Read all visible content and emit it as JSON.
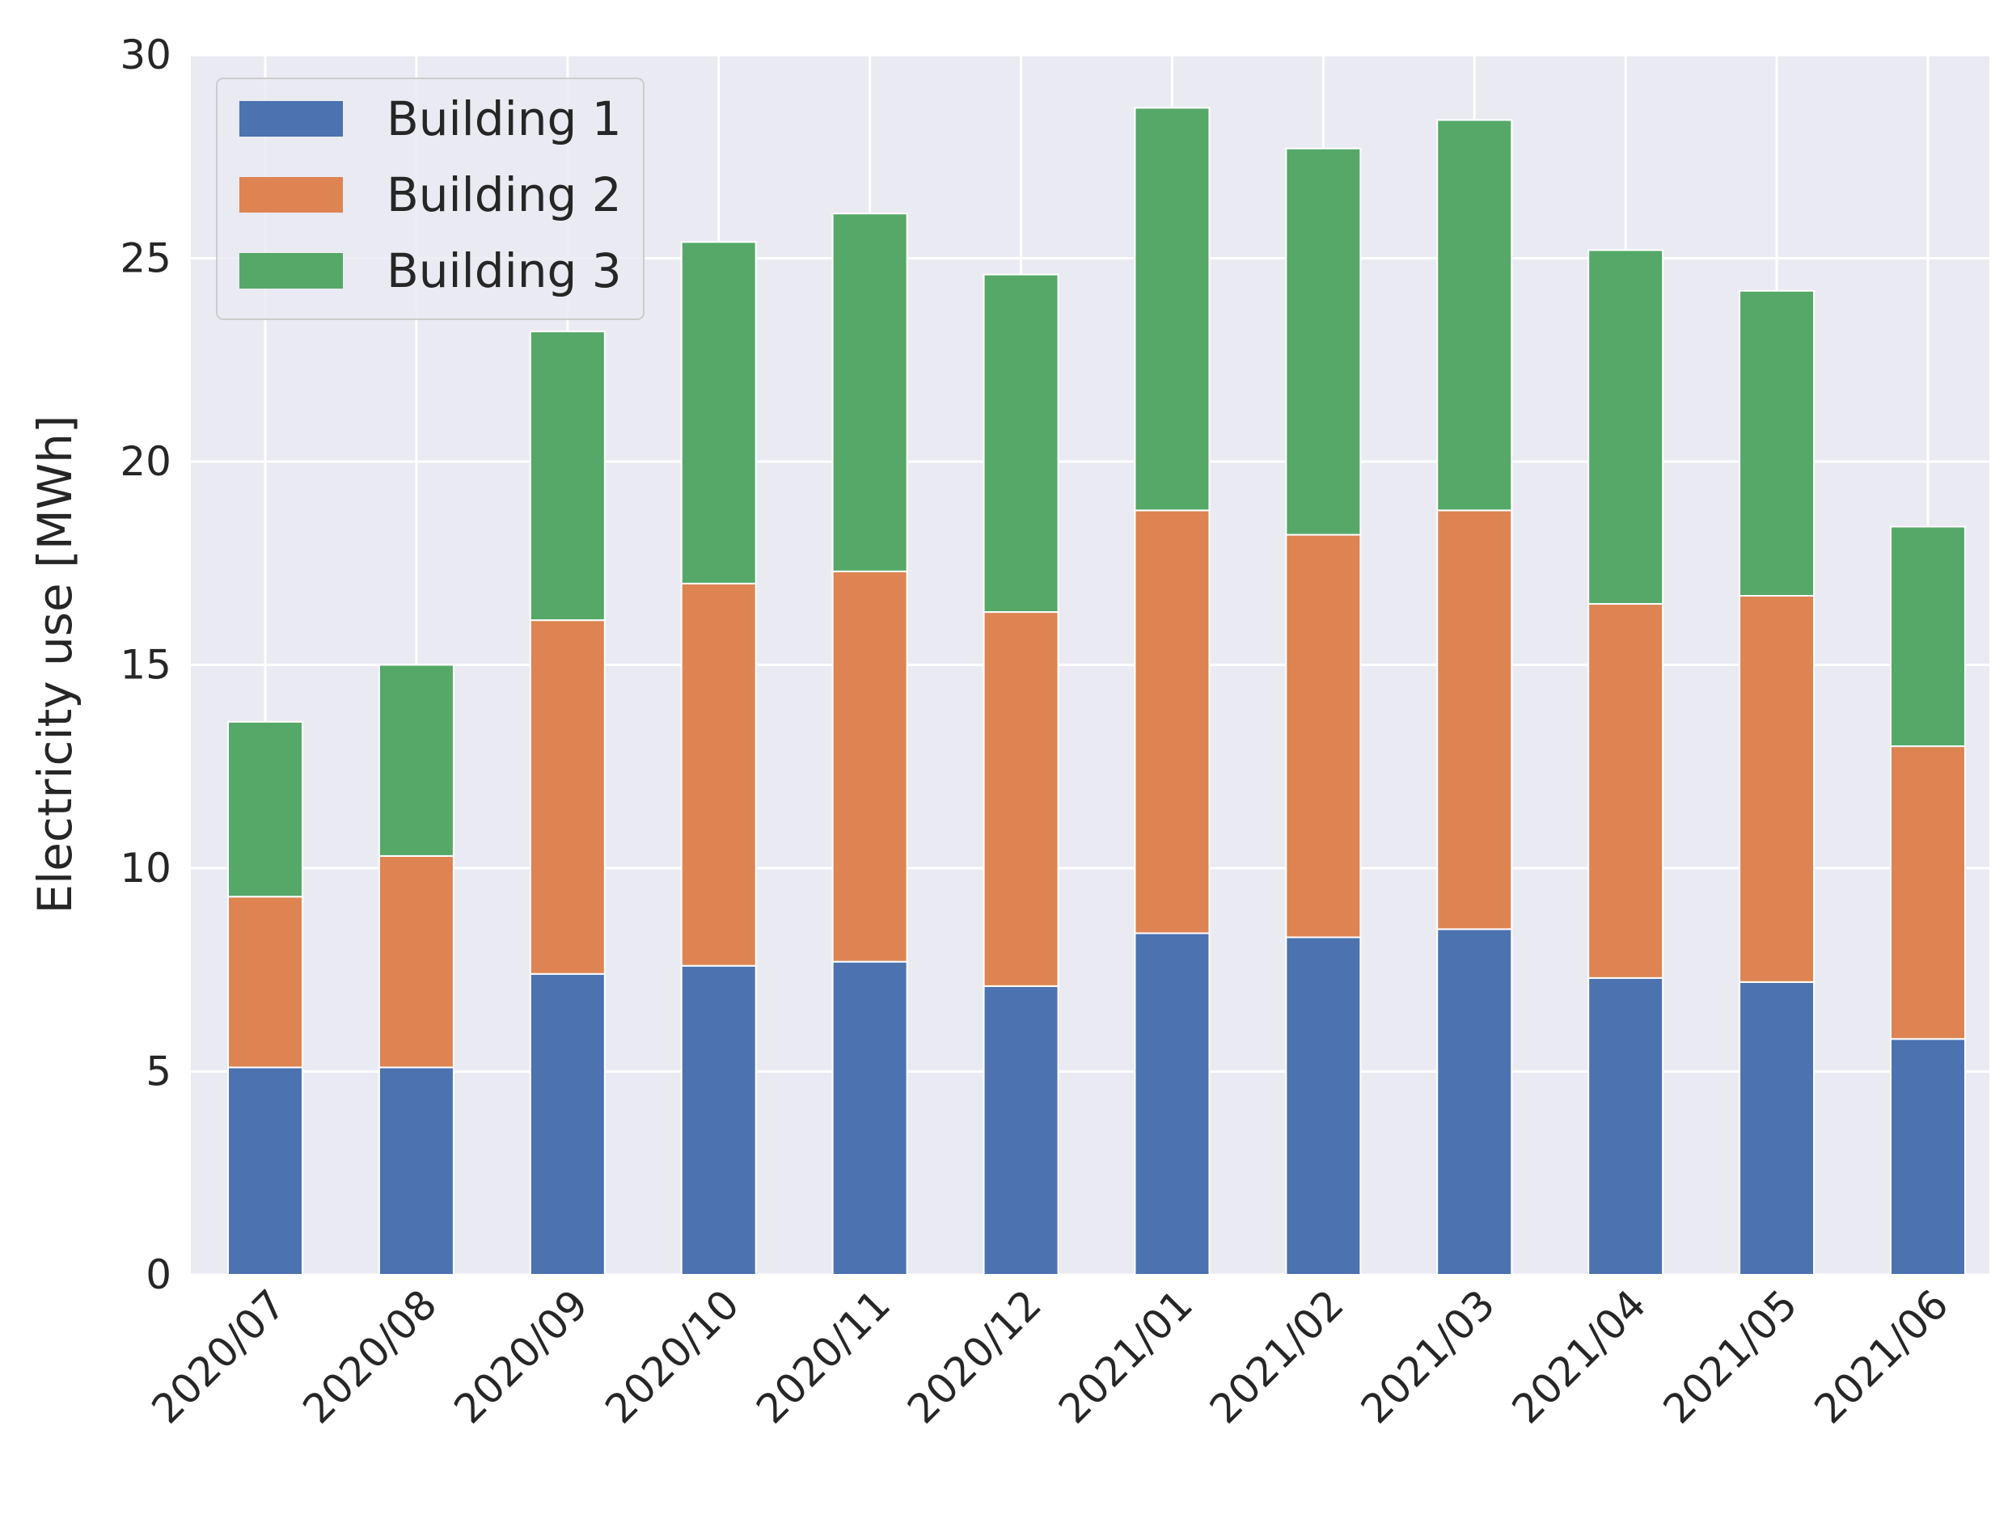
{
  "chart_data": {
    "type": "bar",
    "stacked": true,
    "title": "",
    "xlabel": "",
    "ylabel": "Electricity use [MWh]",
    "ylim": [
      0,
      30
    ],
    "yticks": [
      "0",
      "5",
      "10",
      "15",
      "20",
      "25",
      "30"
    ],
    "grid": true,
    "legend_position": "top-left",
    "categories": [
      "2020/07",
      "2020/08",
      "2020/09",
      "2020/10",
      "2020/11",
      "2020/12",
      "2021/01",
      "2021/02",
      "2021/03",
      "2021/04",
      "2021/05",
      "2021/06"
    ],
    "series": [
      {
        "name": "Building 1",
        "color": "#4c72b0",
        "values": [
          5.1,
          5.1,
          7.4,
          7.6,
          7.7,
          7.1,
          8.4,
          8.3,
          8.5,
          7.3,
          7.2,
          5.8
        ]
      },
      {
        "name": "Building 2",
        "color": "#dd8452",
        "values": [
          4.2,
          5.2,
          8.7,
          9.4,
          9.6,
          9.2,
          10.4,
          9.9,
          10.3,
          9.2,
          9.5,
          7.2
        ]
      },
      {
        "name": "Building 3",
        "color": "#55a868",
        "values": [
          4.3,
          4.7,
          7.1,
          8.4,
          8.8,
          8.3,
          9.9,
          9.5,
          9.6,
          8.7,
          7.5,
          5.4
        ]
      }
    ]
  }
}
